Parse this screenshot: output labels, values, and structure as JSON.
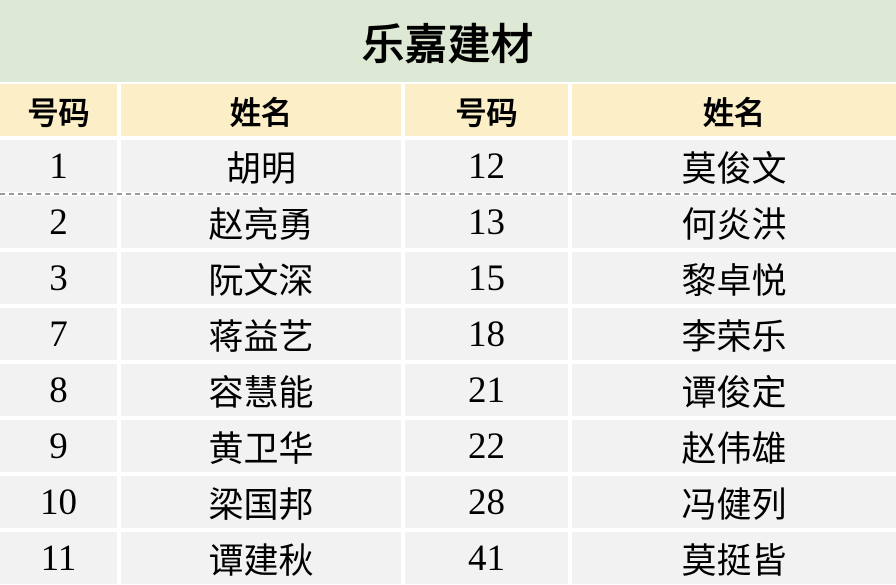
{
  "title": "乐嘉建材",
  "colors": {
    "title_bg": "#dde9d5",
    "header_bg": "#fcefc8",
    "row_bg": "#f2f2f2",
    "divider": "#9b9b9b"
  },
  "table": {
    "headers": [
      "号码",
      "姓名",
      "号码",
      "姓名"
    ],
    "rows": [
      [
        "1",
        "胡明",
        "12",
        "莫俊文"
      ],
      [
        "2",
        "赵亮勇",
        "13",
        "何炎洪"
      ],
      [
        "3",
        "阮文深",
        "15",
        "黎卓悦"
      ],
      [
        "7",
        "蒋益艺",
        "18",
        "李荣乐"
      ],
      [
        "8",
        "容慧能",
        "21",
        "谭俊定"
      ],
      [
        "9",
        "黄卫华",
        "22",
        "赵伟雄"
      ],
      [
        "10",
        "梁国邦",
        "28",
        "冯健列"
      ],
      [
        "11",
        "谭建秋",
        "41",
        "莫挺皆"
      ]
    ]
  }
}
